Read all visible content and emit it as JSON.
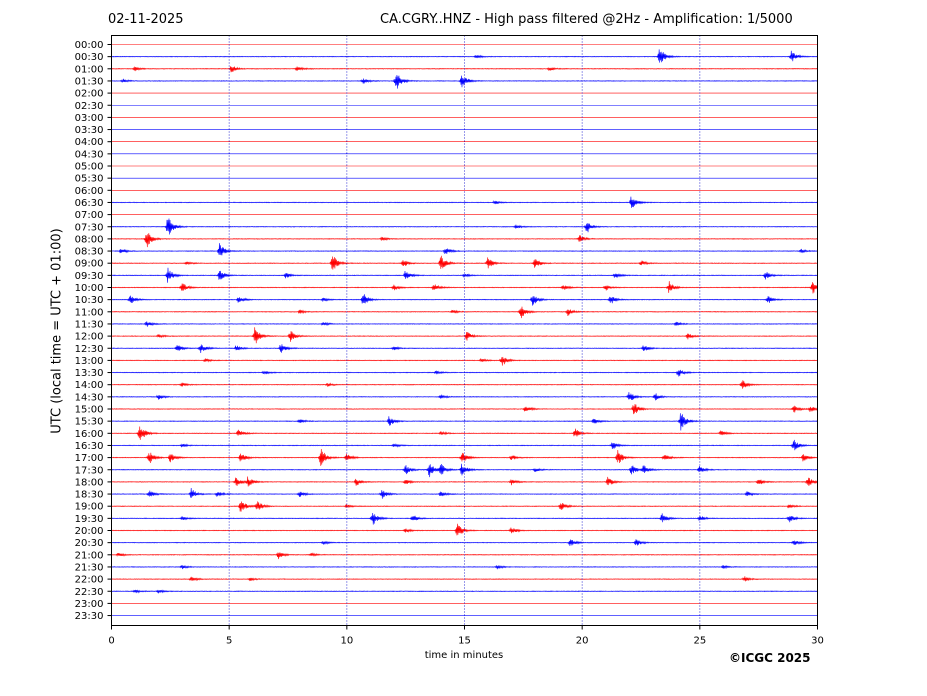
{
  "header": {
    "date": "02-11-2025",
    "title": "CA.CGRY..HNZ - High pass filtered @2Hz - Amplification: 1/5000"
  },
  "footer": {
    "copyright": "©ICGC 2025"
  },
  "colors": {
    "trace_a": "#ff0000",
    "trace_b": "#0000ff",
    "axis": "#000000",
    "grid": "#0000cc"
  },
  "chart_data": {
    "type": "line",
    "xlabel": "time in minutes",
    "ylabel": "UTC (local time = UTC + 01:00)",
    "xlim": [
      0,
      30
    ],
    "x_ticks": [
      0,
      5,
      10,
      15,
      20,
      25,
      30
    ],
    "vertical_grid": [
      5,
      10,
      15,
      20,
      25
    ],
    "grid": "dotted vertical lines",
    "row_labels": [
      "00:00",
      "00:30",
      "01:00",
      "01:30",
      "02:00",
      "02:30",
      "03:00",
      "03:30",
      "04:00",
      "04:30",
      "05:00",
      "05:30",
      "06:00",
      "06:30",
      "07:00",
      "07:30",
      "08:00",
      "08:30",
      "09:00",
      "09:30",
      "10:00",
      "10:30",
      "11:00",
      "11:30",
      "12:00",
      "12:30",
      "13:00",
      "13:30",
      "14:00",
      "14:30",
      "15:00",
      "15:30",
      "16:00",
      "16:30",
      "17:00",
      "17:30",
      "18:00",
      "18:30",
      "19:00",
      "19:30",
      "20:00",
      "20:30",
      "21:00",
      "21:30",
      "22:00",
      "22:30",
      "23:00",
      "23:30"
    ],
    "series": [
      {
        "row": "00:30",
        "color": "blue",
        "events": [
          [
            23.3,
            10
          ],
          [
            28.9,
            6
          ],
          [
            15.5,
            2
          ]
        ]
      },
      {
        "row": "01:00",
        "color": "red",
        "events": [
          [
            5.1,
            4
          ],
          [
            7.9,
            3
          ],
          [
            18.6,
            2
          ],
          [
            1.0,
            2
          ]
        ]
      },
      {
        "row": "01:30",
        "color": "blue",
        "events": [
          [
            12.1,
            10
          ],
          [
            14.9,
            8
          ],
          [
            10.7,
            3
          ],
          [
            0.5,
            2
          ]
        ]
      },
      {
        "row": "06:30",
        "color": "blue",
        "events": [
          [
            22.1,
            7
          ],
          [
            16.3,
            2
          ]
        ]
      },
      {
        "row": "07:30",
        "color": "blue",
        "events": [
          [
            2.4,
            11
          ],
          [
            20.2,
            7
          ],
          [
            17.2,
            2
          ]
        ]
      },
      {
        "row": "08:00",
        "color": "red",
        "events": [
          [
            1.5,
            9
          ],
          [
            19.9,
            4
          ],
          [
            11.5,
            2
          ]
        ]
      },
      {
        "row": "08:30",
        "color": "blue",
        "events": [
          [
            4.6,
            8
          ],
          [
            14.2,
            4
          ],
          [
            0.4,
            3
          ],
          [
            29.3,
            2
          ]
        ]
      },
      {
        "row": "09:00",
        "color": "red",
        "events": [
          [
            9.4,
            9
          ],
          [
            14.0,
            8
          ],
          [
            16.0,
            6
          ],
          [
            18.0,
            6
          ],
          [
            12.4,
            4
          ],
          [
            22.5,
            3
          ],
          [
            3.2,
            2
          ]
        ]
      },
      {
        "row": "09:30",
        "color": "blue",
        "events": [
          [
            2.4,
            8
          ],
          [
            4.6,
            6
          ],
          [
            12.5,
            5
          ],
          [
            7.4,
            3
          ],
          [
            27.8,
            4
          ],
          [
            21.4,
            3
          ],
          [
            15.0,
            2
          ]
        ]
      },
      {
        "row": "10:00",
        "color": "red",
        "events": [
          [
            3.0,
            5
          ],
          [
            13.7,
            5
          ],
          [
            23.7,
            6
          ],
          [
            29.8,
            7
          ],
          [
            12.0,
            3
          ],
          [
            19.2,
            3
          ],
          [
            21.0,
            3
          ]
        ]
      },
      {
        "row": "10:30",
        "color": "blue",
        "events": [
          [
            0.8,
            5
          ],
          [
            10.7,
            7
          ],
          [
            17.9,
            7
          ],
          [
            21.2,
            5
          ],
          [
            5.4,
            4
          ],
          [
            27.9,
            4
          ],
          [
            9.0,
            2
          ]
        ]
      },
      {
        "row": "11:00",
        "color": "red",
        "events": [
          [
            17.4,
            7
          ],
          [
            19.4,
            4
          ],
          [
            14.5,
            2
          ],
          [
            8.0,
            2
          ]
        ]
      },
      {
        "row": "11:30",
        "color": "blue",
        "events": [
          [
            1.5,
            3
          ],
          [
            9.0,
            2
          ],
          [
            24.0,
            2
          ]
        ]
      },
      {
        "row": "12:00",
        "color": "red",
        "events": [
          [
            6.1,
            9
          ],
          [
            7.6,
            6
          ],
          [
            15.1,
            5
          ],
          [
            24.5,
            3
          ],
          [
            2.0,
            2
          ]
        ]
      },
      {
        "row": "12:30",
        "color": "blue",
        "events": [
          [
            2.8,
            4
          ],
          [
            3.8,
            5
          ],
          [
            7.2,
            5
          ],
          [
            22.6,
            4
          ],
          [
            5.3,
            3
          ],
          [
            12.0,
            2
          ]
        ]
      },
      {
        "row": "13:00",
        "color": "red",
        "events": [
          [
            16.6,
            6
          ],
          [
            15.7,
            2
          ],
          [
            4.0,
            2
          ]
        ]
      },
      {
        "row": "13:30",
        "color": "blue",
        "events": [
          [
            24.1,
            4
          ],
          [
            13.8,
            2
          ],
          [
            6.5,
            2
          ]
        ]
      },
      {
        "row": "14:00",
        "color": "red",
        "events": [
          [
            26.8,
            5
          ],
          [
            3.0,
            2
          ],
          [
            9.2,
            2
          ]
        ]
      },
      {
        "row": "14:30",
        "color": "blue",
        "events": [
          [
            22.0,
            6
          ],
          [
            23.1,
            4
          ],
          [
            2.0,
            3
          ],
          [
            14.0,
            2
          ]
        ]
      },
      {
        "row": "15:00",
        "color": "red",
        "events": [
          [
            22.2,
            7
          ],
          [
            17.6,
            4
          ],
          [
            29.0,
            4
          ],
          [
            29.7,
            3
          ]
        ]
      },
      {
        "row": "15:30",
        "color": "blue",
        "events": [
          [
            11.8,
            5
          ],
          [
            24.2,
            10
          ],
          [
            8.0,
            2
          ],
          [
            20.5,
            3
          ]
        ]
      },
      {
        "row": "16:00",
        "color": "red",
        "events": [
          [
            1.2,
            10
          ],
          [
            5.4,
            4
          ],
          [
            19.7,
            5
          ],
          [
            25.9,
            3
          ],
          [
            14.0,
            2
          ]
        ]
      },
      {
        "row": "16:30",
        "color": "blue",
        "events": [
          [
            29.0,
            6
          ],
          [
            21.3,
            4
          ],
          [
            3.0,
            2
          ],
          [
            12.0,
            2
          ]
        ]
      },
      {
        "row": "17:00",
        "color": "red",
        "events": [
          [
            1.6,
            7
          ],
          [
            2.5,
            5
          ],
          [
            5.5,
            5
          ],
          [
            8.9,
            10
          ],
          [
            10.0,
            4
          ],
          [
            14.9,
            6
          ],
          [
            21.5,
            8
          ],
          [
            23.5,
            4
          ],
          [
            29.4,
            4
          ],
          [
            17.0,
            3
          ]
        ]
      },
      {
        "row": "17:30",
        "color": "blue",
        "events": [
          [
            12.5,
            5
          ],
          [
            13.5,
            8
          ],
          [
            14.0,
            6
          ],
          [
            14.9,
            7
          ],
          [
            22.1,
            6
          ],
          [
            22.6,
            5
          ],
          [
            25.0,
            4
          ],
          [
            18.0,
            2
          ]
        ]
      },
      {
        "row": "18:00",
        "color": "red",
        "events": [
          [
            5.3,
            5
          ],
          [
            5.8,
            5
          ],
          [
            10.4,
            4
          ],
          [
            21.1,
            5
          ],
          [
            27.5,
            4
          ],
          [
            29.6,
            5
          ],
          [
            12.5,
            3
          ],
          [
            17.0,
            3
          ]
        ]
      },
      {
        "row": "18:30",
        "color": "blue",
        "events": [
          [
            1.6,
            4
          ],
          [
            3.4,
            6
          ],
          [
            11.5,
            5
          ],
          [
            4.5,
            3
          ],
          [
            27.0,
            3
          ],
          [
            8.0,
            3
          ],
          [
            14.0,
            3
          ]
        ]
      },
      {
        "row": "19:00",
        "color": "red",
        "events": [
          [
            5.5,
            7
          ],
          [
            6.2,
            6
          ],
          [
            19.1,
            5
          ],
          [
            10.0,
            2
          ],
          [
            28.8,
            2
          ]
        ]
      },
      {
        "row": "19:30",
        "color": "blue",
        "events": [
          [
            11.1,
            7
          ],
          [
            12.8,
            4
          ],
          [
            23.4,
            5
          ],
          [
            28.8,
            5
          ],
          [
            25.0,
            3
          ],
          [
            3.0,
            2
          ]
        ]
      },
      {
        "row": "20:00",
        "color": "red",
        "events": [
          [
            14.7,
            8
          ],
          [
            17.0,
            4
          ],
          [
            12.5,
            2
          ]
        ]
      },
      {
        "row": "20:30",
        "color": "blue",
        "events": [
          [
            19.5,
            4
          ],
          [
            22.3,
            4
          ],
          [
            29.0,
            3
          ],
          [
            9.0,
            2
          ]
        ]
      },
      {
        "row": "21:00",
        "color": "red",
        "events": [
          [
            7.1,
            4
          ],
          [
            8.5,
            2
          ],
          [
            0.3,
            2
          ]
        ]
      },
      {
        "row": "21:30",
        "color": "blue",
        "events": [
          [
            16.4,
            2
          ],
          [
            3.0,
            2
          ],
          [
            26.0,
            2
          ]
        ]
      },
      {
        "row": "22:00",
        "color": "red",
        "events": [
          [
            3.4,
            3
          ],
          [
            26.9,
            3
          ],
          [
            5.9,
            2
          ]
        ]
      },
      {
        "row": "22:30",
        "color": "blue",
        "events": [
          [
            1.0,
            2
          ],
          [
            2.0,
            2
          ]
        ]
      }
    ]
  }
}
